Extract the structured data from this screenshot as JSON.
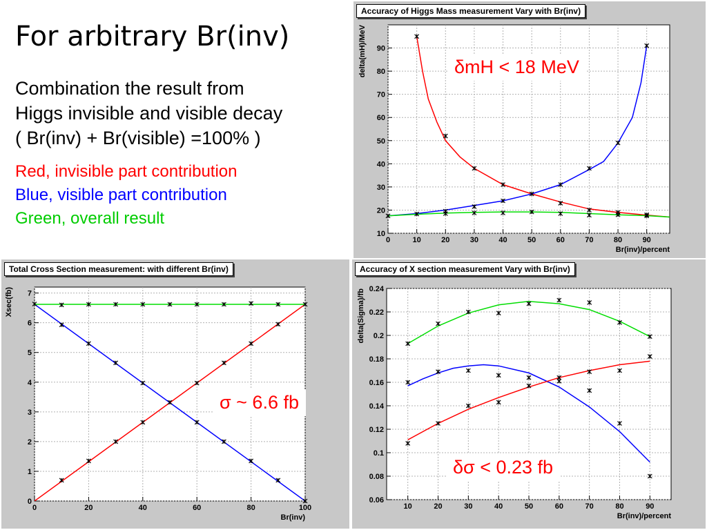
{
  "slide": {
    "title": "For arbitrary Br(inv)",
    "lines": [
      "Combination the result from",
      "Higgs invisible and visible decay",
      "( Br(inv) + Br(visible) =100% )"
    ],
    "legend": [
      {
        "text": "Red, invisible part contribution",
        "color": "#ff0000"
      },
      {
        "text": "Blue, visible part contribution",
        "color": "#0000ff"
      },
      {
        "text": "Green, overall result",
        "color": "#00cc00"
      }
    ]
  },
  "colors": {
    "red": "#ff0000",
    "blue": "#0000ff",
    "green": "#00dd00",
    "panel_bg": "#c8c8c8",
    "grid": "#b0b0b0"
  },
  "chart_data": [
    {
      "id": "mass",
      "type": "line",
      "title": "Accuracy of Higgs Mass measurement Vary with Br(inv)",
      "xlabel": "Br(inv)/percent",
      "ylabel": "delta(mH)/MeV",
      "xlim": [
        0,
        98
      ],
      "ylim": [
        10,
        100
      ],
      "xticks": [
        0,
        10,
        20,
        30,
        40,
        50,
        60,
        70,
        80,
        90
      ],
      "yticks": [
        10,
        20,
        30,
        40,
        50,
        60,
        70,
        80,
        90
      ],
      "grid": true,
      "callout": "δmH < 18 MeV",
      "points": [
        {
          "x": 0,
          "y": 17.5
        },
        {
          "x": 10,
          "y": 18.3
        },
        {
          "x": 10,
          "y": 95
        },
        {
          "x": 20,
          "y": 18.5
        },
        {
          "x": 20,
          "y": 52
        },
        {
          "x": 20,
          "y": 19.5
        },
        {
          "x": 30,
          "y": 18.8
        },
        {
          "x": 30,
          "y": 38
        },
        {
          "x": 30,
          "y": 21.5
        },
        {
          "x": 40,
          "y": 18.8
        },
        {
          "x": 40,
          "y": 31
        },
        {
          "x": 40,
          "y": 24
        },
        {
          "x": 50,
          "y": 19.2
        },
        {
          "x": 50,
          "y": 27
        },
        {
          "x": 60,
          "y": 18.5
        },
        {
          "x": 60,
          "y": 23
        },
        {
          "x": 60,
          "y": 31
        },
        {
          "x": 70,
          "y": 17.8
        },
        {
          "x": 70,
          "y": 20
        },
        {
          "x": 70,
          "y": 38
        },
        {
          "x": 80,
          "y": 18
        },
        {
          "x": 80,
          "y": 19
        },
        {
          "x": 80,
          "y": 49
        },
        {
          "x": 90,
          "y": 17.5
        },
        {
          "x": 90,
          "y": 18
        },
        {
          "x": 90,
          "y": 91
        }
      ],
      "series": [
        {
          "color": "red",
          "x": [
            10,
            12,
            14,
            17,
            20,
            25,
            30,
            40,
            50,
            60,
            70,
            80,
            90,
            98
          ],
          "y": [
            95,
            80,
            68,
            58,
            50,
            43,
            38,
            31,
            27,
            23.5,
            20.5,
            19,
            17.8,
            17
          ]
        },
        {
          "color": "blue",
          "x": [
            0,
            10,
            20,
            30,
            40,
            50,
            60,
            70,
            75,
            80,
            85,
            88,
            90
          ],
          "y": [
            17.5,
            18.5,
            20,
            22,
            24,
            27,
            31,
            37.5,
            41,
            49,
            60,
            75,
            91
          ]
        },
        {
          "color": "green",
          "x": [
            0,
            10,
            20,
            30,
            40,
            50,
            60,
            70,
            80,
            90,
            98
          ],
          "y": [
            17.5,
            18.2,
            18.7,
            19,
            19.2,
            19.2,
            19,
            18.5,
            18,
            17.6,
            17
          ]
        }
      ]
    },
    {
      "id": "xsec",
      "type": "line",
      "title": "Total Cross Section measurement: with different Br(inv)",
      "xlabel": "Br(inv)",
      "ylabel": "Xsec(fb)",
      "xlim": [
        0,
        100
      ],
      "ylim": [
        0,
        7.2
      ],
      "xticks": [
        0,
        20,
        40,
        60,
        80,
        100
      ],
      "yticks": [
        0,
        1,
        2,
        3,
        4,
        5,
        6,
        7
      ],
      "grid": true,
      "callout": "σ ~ 6.6 fb",
      "points": [
        {
          "x": 0,
          "y": 6.63
        },
        {
          "x": 10,
          "y": 6.6
        },
        {
          "x": 20,
          "y": 6.62
        },
        {
          "x": 30,
          "y": 6.62
        },
        {
          "x": 40,
          "y": 6.62
        },
        {
          "x": 50,
          "y": 6.62
        },
        {
          "x": 60,
          "y": 6.62
        },
        {
          "x": 70,
          "y": 6.62
        },
        {
          "x": 80,
          "y": 6.65
        },
        {
          "x": 90,
          "y": 6.62
        },
        {
          "x": 100,
          "y": 6.62
        },
        {
          "x": 10,
          "y": 0.7
        },
        {
          "x": 20,
          "y": 1.35
        },
        {
          "x": 30,
          "y": 2.0
        },
        {
          "x": 40,
          "y": 2.65
        },
        {
          "x": 50,
          "y": 3.32
        },
        {
          "x": 60,
          "y": 3.97
        },
        {
          "x": 70,
          "y": 4.65
        },
        {
          "x": 80,
          "y": 5.3
        },
        {
          "x": 90,
          "y": 5.95
        },
        {
          "x": 10,
          "y": 5.93
        },
        {
          "x": 20,
          "y": 5.3
        },
        {
          "x": 30,
          "y": 4.65
        },
        {
          "x": 40,
          "y": 3.97
        },
        {
          "x": 60,
          "y": 2.65
        },
        {
          "x": 70,
          "y": 2.0
        },
        {
          "x": 80,
          "y": 1.35
        },
        {
          "x": 90,
          "y": 0.7
        },
        {
          "x": 100,
          "y": 0.0
        }
      ],
      "series": [
        {
          "color": "red",
          "x": [
            0,
            100
          ],
          "y": [
            0,
            6.62
          ]
        },
        {
          "color": "blue",
          "x": [
            0,
            100
          ],
          "y": [
            6.62,
            0
          ]
        },
        {
          "color": "green",
          "x": [
            0,
            10,
            20,
            30,
            40,
            50,
            60,
            70,
            80,
            90,
            100
          ],
          "y": [
            6.62,
            6.62,
            6.62,
            6.62,
            6.62,
            6.62,
            6.62,
            6.62,
            6.62,
            6.62,
            6.62
          ]
        }
      ]
    },
    {
      "id": "xsec-accuracy",
      "type": "line",
      "title": "Accuracy of X section measurement Vary with Br(inv)",
      "xlabel": "Br(inv)/percent",
      "ylabel": "delta(Sigma)/fb",
      "xlim": [
        3,
        97
      ],
      "ylim": [
        0.06,
        0.24
      ],
      "xticks": [
        10,
        20,
        30,
        40,
        50,
        60,
        70,
        80,
        90
      ],
      "yticks": [
        0.06,
        0.08,
        0.1,
        0.12,
        0.14,
        0.16,
        0.18,
        0.2,
        0.22,
        0.24
      ],
      "grid": true,
      "callout": "δσ < 0.23 fb",
      "points": [
        {
          "x": 10,
          "y": 0.193
        },
        {
          "x": 20,
          "y": 0.21
        },
        {
          "x": 30,
          "y": 0.22
        },
        {
          "x": 40,
          "y": 0.219
        },
        {
          "x": 50,
          "y": 0.227
        },
        {
          "x": 60,
          "y": 0.23
        },
        {
          "x": 70,
          "y": 0.228
        },
        {
          "x": 80,
          "y": 0.211
        },
        {
          "x": 90,
          "y": 0.199
        },
        {
          "x": 10,
          "y": 0.16
        },
        {
          "x": 20,
          "y": 0.169
        },
        {
          "x": 30,
          "y": 0.17
        },
        {
          "x": 40,
          "y": 0.166
        },
        {
          "x": 50,
          "y": 0.164
        },
        {
          "x": 60,
          "y": 0.164
        },
        {
          "x": 70,
          "y": 0.153
        },
        {
          "x": 80,
          "y": 0.125
        },
        {
          "x": 90,
          "y": 0.08
        },
        {
          "x": 10,
          "y": 0.108
        },
        {
          "x": 20,
          "y": 0.125
        },
        {
          "x": 30,
          "y": 0.14
        },
        {
          "x": 40,
          "y": 0.143
        },
        {
          "x": 50,
          "y": 0.157
        },
        {
          "x": 60,
          "y": 0.161
        },
        {
          "x": 70,
          "y": 0.169
        },
        {
          "x": 80,
          "y": 0.17
        },
        {
          "x": 90,
          "y": 0.182
        }
      ],
      "series": [
        {
          "color": "green",
          "x": [
            10,
            20,
            30,
            40,
            50,
            60,
            70,
            80,
            90
          ],
          "y": [
            0.193,
            0.208,
            0.219,
            0.226,
            0.229,
            0.227,
            0.222,
            0.212,
            0.199
          ]
        },
        {
          "color": "blue",
          "x": [
            10,
            15,
            20,
            25,
            30,
            35,
            40,
            50,
            60,
            70,
            80,
            90
          ],
          "y": [
            0.157,
            0.163,
            0.168,
            0.172,
            0.174,
            0.175,
            0.174,
            0.168,
            0.156,
            0.139,
            0.118,
            0.092
          ]
        },
        {
          "color": "red",
          "x": [
            10,
            20,
            30,
            40,
            50,
            60,
            70,
            80,
            90
          ],
          "y": [
            0.111,
            0.125,
            0.137,
            0.147,
            0.156,
            0.164,
            0.17,
            0.175,
            0.178
          ]
        }
      ]
    }
  ]
}
